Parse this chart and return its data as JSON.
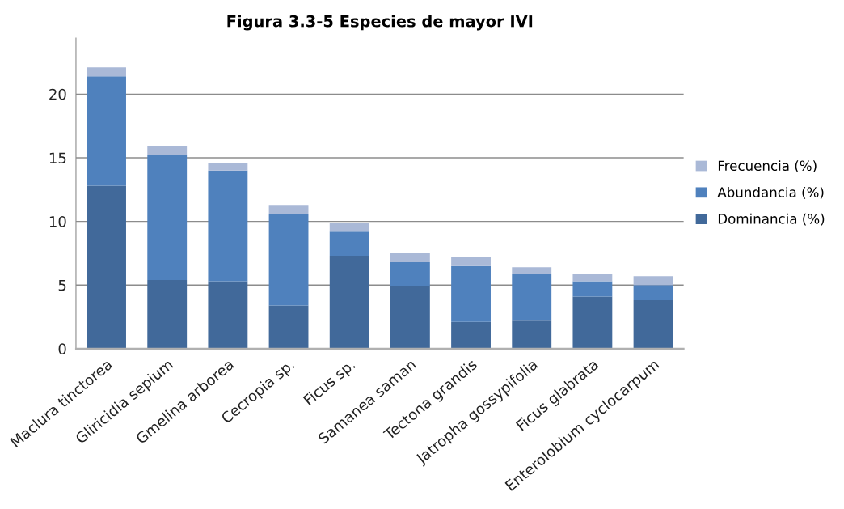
{
  "chart_data": {
    "type": "bar",
    "title": "Figura 3.3-5 Especies de mayor IVI",
    "stacked": true,
    "categories": [
      "Maclura tinctorea",
      "Gliricidia sepium",
      "Gmelina arborea",
      "Cecropia sp.",
      "Ficus sp.",
      "Samanea saman",
      "Tectona grandis",
      "Jatropha gossypifolia",
      "Ficus glabrata",
      "Enterolobium cyclocarpum"
    ],
    "series": [
      {
        "name": "Dominancia (%)",
        "color": "#41699a",
        "values": [
          12.8,
          5.4,
          5.3,
          3.4,
          7.3,
          4.9,
          2.1,
          2.2,
          4.1,
          3.8
        ]
      },
      {
        "name": "Abundancia (%)",
        "color": "#4f81bd",
        "values": [
          8.6,
          9.8,
          8.7,
          7.2,
          1.9,
          1.9,
          4.4,
          3.7,
          1.2,
          1.2
        ]
      },
      {
        "name": "Frecuencia (%)",
        "color": "#aab9d7",
        "values": [
          0.7,
          0.7,
          0.6,
          0.7,
          0.7,
          0.7,
          0.7,
          0.5,
          0.6,
          0.7
        ]
      }
    ],
    "ylim": [
      0,
      24.4
    ],
    "yticks": [
      0,
      5,
      10,
      15,
      20
    ],
    "grid": "y",
    "legend": "right"
  }
}
